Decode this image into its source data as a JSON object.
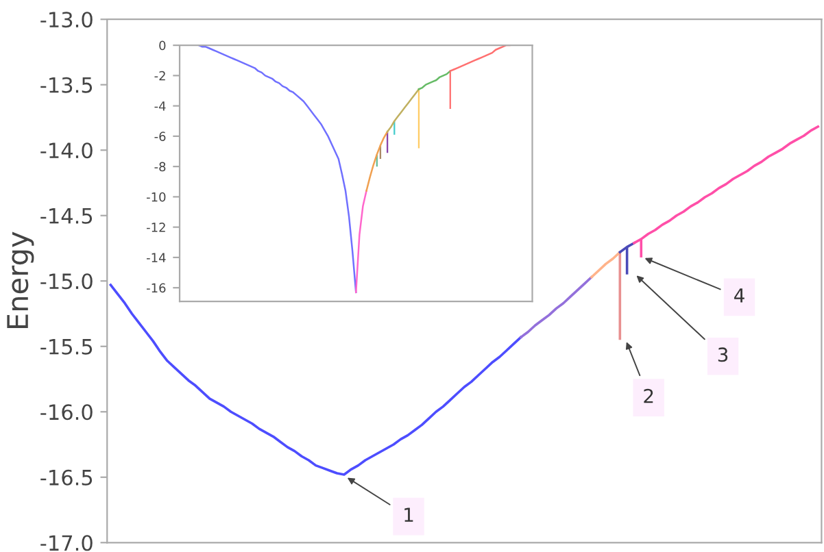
{
  "chart_data": [
    {
      "type": "line",
      "ylabel": "Energy",
      "ylim": [
        -17.0,
        -13.0
      ],
      "tick_labels": "y",
      "yticks": [
        {
          "value": -13.0,
          "label": "-13.0"
        },
        {
          "value": -13.5,
          "label": "-13.5"
        },
        {
          "value": -14.0,
          "label": "-14.0"
        },
        {
          "value": -14.5,
          "label": "-14.5"
        },
        {
          "value": -15.0,
          "label": "-15.0"
        },
        {
          "value": -15.5,
          "label": "-15.5"
        },
        {
          "value": -16.0,
          "label": "-16.0"
        },
        {
          "value": -16.5,
          "label": "-16.5"
        },
        {
          "value": -17.0,
          "label": "-17.0"
        }
      ],
      "categories": [
        null,
        null,
        null,
        null,
        null,
        null,
        null,
        null,
        null,
        null,
        null,
        null,
        null,
        null,
        null,
        null,
        null,
        null,
        null,
        null,
        null,
        null,
        null,
        null,
        null,
        null,
        null,
        null,
        null,
        null,
        null,
        null,
        null,
        null,
        null,
        null,
        null,
        null,
        null,
        null,
        null,
        null,
        null,
        null,
        null,
        null,
        null,
        null,
        null,
        null,
        null,
        null,
        null,
        null,
        null,
        null,
        null,
        null,
        null,
        null,
        null,
        null,
        null,
        null,
        null,
        null,
        null,
        null,
        null,
        null,
        null,
        null,
        null,
        null,
        null,
        null,
        null,
        null,
        null,
        null,
        null,
        null,
        null,
        null,
        null,
        null,
        null,
        null,
        null,
        null,
        null,
        null,
        null,
        null,
        null,
        null,
        null,
        null,
        null,
        null,
        null
      ],
      "series": [
        {
          "color": "#4d4dff",
          "values": [
            -15.03,
            -15.1,
            -15.17,
            -15.25,
            -15.32,
            -15.39,
            -15.46,
            -15.54,
            -15.61,
            -15.66,
            -15.71,
            -15.76,
            -15.8,
            -15.85,
            -15.9,
            -15.93,
            -15.96,
            -16.0,
            -16.03,
            -16.06,
            -16.09,
            -16.13,
            -16.16,
            -16.19,
            -16.23,
            -16.27,
            -16.3,
            -16.34,
            -16.37,
            -16.41,
            -16.43,
            -16.45,
            -16.47,
            -16.48,
            -16.44,
            -16.41,
            -16.37,
            -16.34,
            -16.31,
            -16.28,
            -16.25,
            -16.21,
            -16.18,
            -16.14,
            -16.1,
            -16.05,
            -16.0,
            -15.96,
            -15.91,
            -15.86,
            -15.81,
            -15.77,
            -15.72,
            -15.67,
            -15.62,
            -15.58,
            -15.53,
            -15.48,
            -15.43,
            null,
            null,
            null,
            null,
            null,
            null,
            null,
            null,
            null,
            null,
            null,
            null,
            null,
            null,
            null,
            null,
            null,
            null,
            null,
            null,
            null,
            null,
            null,
            null,
            null,
            null,
            null,
            null,
            null,
            null,
            null,
            null,
            null,
            null,
            null,
            null,
            null,
            null,
            null,
            null,
            null,
            null
          ]
        },
        {
          "color": "#9370db",
          "values": [
            null,
            null,
            null,
            null,
            null,
            null,
            null,
            null,
            null,
            null,
            null,
            null,
            null,
            null,
            null,
            null,
            null,
            null,
            null,
            null,
            null,
            null,
            null,
            null,
            null,
            null,
            null,
            null,
            null,
            null,
            null,
            null,
            null,
            null,
            null,
            null,
            null,
            null,
            null,
            null,
            null,
            null,
            null,
            null,
            null,
            null,
            null,
            null,
            null,
            null,
            null,
            null,
            null,
            null,
            null,
            null,
            null,
            null,
            -15.43,
            -15.39,
            -15.34,
            -15.3,
            -15.26,
            -15.21,
            -15.17,
            -15.12,
            -15.07,
            -15.02,
            -14.97,
            null,
            null,
            null,
            null,
            null,
            null,
            null,
            null,
            null,
            null,
            null,
            null,
            null,
            null,
            null,
            null,
            null,
            null,
            null,
            null,
            null,
            null,
            null,
            null,
            null,
            null,
            null,
            null,
            null,
            null,
            null,
            null
          ]
        },
        {
          "color": "#ffb38a",
          "values": [
            null,
            null,
            null,
            null,
            null,
            null,
            null,
            null,
            null,
            null,
            null,
            null,
            null,
            null,
            null,
            null,
            null,
            null,
            null,
            null,
            null,
            null,
            null,
            null,
            null,
            null,
            null,
            null,
            null,
            null,
            null,
            null,
            null,
            null,
            null,
            null,
            null,
            null,
            null,
            null,
            null,
            null,
            null,
            null,
            null,
            null,
            null,
            null,
            null,
            null,
            null,
            null,
            null,
            null,
            null,
            null,
            null,
            null,
            null,
            null,
            null,
            null,
            null,
            null,
            null,
            null,
            null,
            null,
            -14.97,
            -14.92,
            -14.87,
            -14.83,
            -14.78,
            null,
            null,
            null,
            null,
            null,
            null,
            null,
            null,
            null,
            null,
            null,
            null,
            null,
            null,
            null,
            null,
            null,
            null,
            null,
            null,
            null,
            null,
            null,
            null,
            null,
            null,
            null,
            null
          ]
        },
        {
          "color": "#4a4ab8",
          "values": [
            null,
            null,
            null,
            null,
            null,
            null,
            null,
            null,
            null,
            null,
            null,
            null,
            null,
            null,
            null,
            null,
            null,
            null,
            null,
            null,
            null,
            null,
            null,
            null,
            null,
            null,
            null,
            null,
            null,
            null,
            null,
            null,
            null,
            null,
            null,
            null,
            null,
            null,
            null,
            null,
            null,
            null,
            null,
            null,
            null,
            null,
            null,
            null,
            null,
            null,
            null,
            null,
            null,
            null,
            null,
            null,
            null,
            null,
            null,
            null,
            null,
            null,
            null,
            null,
            null,
            null,
            null,
            null,
            null,
            null,
            null,
            null,
            -14.78,
            -14.74,
            -14.71,
            null,
            null,
            null,
            null,
            null,
            null,
            null,
            null,
            null,
            null,
            null,
            null,
            null,
            null,
            null,
            null,
            null,
            null,
            null,
            null,
            null,
            null,
            null,
            null,
            null,
            null
          ]
        },
        {
          "color": "#ff4fa8",
          "values": [
            null,
            null,
            null,
            null,
            null,
            null,
            null,
            null,
            null,
            null,
            null,
            null,
            null,
            null,
            null,
            null,
            null,
            null,
            null,
            null,
            null,
            null,
            null,
            null,
            null,
            null,
            null,
            null,
            null,
            null,
            null,
            null,
            null,
            null,
            null,
            null,
            null,
            null,
            null,
            null,
            null,
            null,
            null,
            null,
            null,
            null,
            null,
            null,
            null,
            null,
            null,
            null,
            null,
            null,
            null,
            null,
            null,
            null,
            null,
            null,
            null,
            null,
            null,
            null,
            null,
            null,
            null,
            null,
            null,
            null,
            null,
            null,
            null,
            null,
            -14.71,
            -14.68,
            -14.64,
            -14.61,
            -14.57,
            -14.54,
            -14.5,
            -14.47,
            -14.43,
            -14.4,
            -14.36,
            -14.33,
            -14.29,
            -14.26,
            -14.22,
            -14.19,
            -14.16,
            -14.12,
            -14.09,
            -14.05,
            -14.02,
            -13.99,
            -13.95,
            -13.92,
            -13.89,
            -13.85,
            -13.82
          ]
        },
        {
          "type": "bar",
          "values": [
            null,
            null,
            null,
            null,
            null,
            null,
            null,
            null,
            null,
            null,
            null,
            null,
            null,
            null,
            null,
            null,
            null,
            null,
            null,
            null,
            null,
            null,
            null,
            null,
            null,
            null,
            null,
            null,
            null,
            null,
            null,
            null,
            null,
            null,
            null,
            null,
            null,
            null,
            null,
            null,
            null,
            null,
            null,
            null,
            null,
            null,
            null,
            null,
            null,
            null,
            null,
            null,
            null,
            null,
            null,
            null,
            null,
            null,
            null,
            null,
            null,
            null,
            null,
            null,
            null,
            null,
            null,
            null,
            null,
            null,
            null,
            null,
            -0.67,
            -0.21,
            null,
            -0.14,
            null,
            null,
            null,
            null,
            null,
            null,
            null,
            null,
            null,
            null,
            null,
            null,
            null,
            null,
            null,
            null,
            null,
            null,
            null,
            null,
            null,
            null,
            null,
            null,
            null
          ],
          "base": [
            null,
            null,
            null,
            null,
            null,
            null,
            null,
            null,
            null,
            null,
            null,
            null,
            null,
            null,
            null,
            null,
            null,
            null,
            null,
            null,
            null,
            null,
            null,
            null,
            null,
            null,
            null,
            null,
            null,
            null,
            null,
            null,
            null,
            null,
            null,
            null,
            null,
            null,
            null,
            null,
            null,
            null,
            null,
            null,
            null,
            null,
            null,
            null,
            null,
            null,
            null,
            null,
            null,
            null,
            null,
            null,
            null,
            null,
            null,
            null,
            null,
            null,
            null,
            null,
            null,
            null,
            null,
            null,
            null,
            null,
            null,
            null,
            -14.78,
            -14.74,
            null,
            -14.68,
            null,
            null,
            null,
            null,
            null,
            null,
            null,
            null,
            null,
            null,
            null,
            null,
            null,
            null,
            null,
            null,
            null,
            null,
            null,
            null,
            null,
            null,
            null,
            null,
            null
          ],
          "colors": [
            null,
            null,
            null,
            null,
            null,
            null,
            null,
            null,
            null,
            null,
            null,
            null,
            null,
            null,
            null,
            null,
            null,
            null,
            null,
            null,
            null,
            null,
            null,
            null,
            null,
            null,
            null,
            null,
            null,
            null,
            null,
            null,
            null,
            null,
            null,
            null,
            null,
            null,
            null,
            null,
            null,
            null,
            null,
            null,
            null,
            null,
            null,
            null,
            null,
            null,
            null,
            null,
            null,
            null,
            null,
            null,
            null,
            null,
            null,
            null,
            null,
            null,
            null,
            null,
            null,
            null,
            null,
            null,
            null,
            null,
            null,
            null,
            "#e89090",
            "#4a4ab8",
            null,
            "#ff4fa8",
            null,
            null,
            null,
            null,
            null,
            null,
            null,
            null,
            null,
            null,
            null,
            null,
            null,
            null,
            null,
            null,
            null,
            null,
            null,
            null,
            null,
            null,
            null,
            null,
            null
          ]
        }
      ],
      "annotations": [
        "1",
        "2",
        "3",
        "4"
      ]
    },
    {
      "type": "line",
      "ylim": [
        -16.9,
        0
      ],
      "yticks": [
        0,
        -2,
        -4,
        -6,
        -8,
        -10,
        -12,
        -14,
        -16
      ],
      "tick_labels": "y",
      "categories": [
        null,
        null,
        null,
        null,
        null,
        null,
        null,
        null,
        null,
        null,
        null,
        null,
        null,
        null,
        null,
        null,
        null,
        null,
        null,
        null,
        null,
        null,
        null,
        null,
        null,
        null,
        null,
        null,
        null,
        null,
        null,
        null,
        null,
        null,
        null,
        null,
        null,
        null,
        null,
        null,
        null,
        null,
        null,
        null,
        null,
        null,
        null,
        null,
        null,
        null,
        null,
        null,
        null,
        null,
        null,
        null,
        null,
        null,
        null,
        null,
        null,
        null,
        null,
        null,
        null,
        null,
        null,
        null,
        null,
        null,
        null,
        null,
        null,
        null,
        null,
        null,
        null,
        null,
        null,
        null,
        null,
        null,
        null,
        null,
        null,
        null,
        null,
        null,
        null,
        null,
        null,
        null,
        null,
        null,
        null,
        null,
        null,
        null,
        null,
        null,
        null
      ],
      "series": [
        {
          "color": "#7070ff",
          "values": [
            null,
            null,
            null,
            null,
            null,
            0.0,
            -0.1,
            -0.1,
            -0.2,
            -0.3,
            -0.4,
            -0.5,
            -0.6,
            -0.7,
            -0.8,
            -0.9,
            -1.0,
            -1.1,
            -1.2,
            -1.3,
            -1.4,
            -1.5,
            -1.7,
            -1.8,
            -2.0,
            -2.1,
            -2.2,
            -2.4,
            -2.5,
            -2.7,
            -2.8,
            -3.0,
            -3.1,
            -3.3,
            -3.5,
            -3.7,
            -4.0,
            -4.3,
            -4.6,
            -4.9,
            -5.2,
            -5.6,
            -6.0,
            -6.5,
            -7.0,
            -7.5,
            -8.5,
            -9.6,
            -11.3,
            -13.6,
            -16.3,
            null,
            null,
            null,
            null,
            null,
            null,
            null,
            null,
            null,
            null,
            null,
            null,
            null,
            null,
            null,
            null,
            null,
            null,
            null,
            null,
            null,
            null,
            null,
            null,
            null,
            null,
            null,
            null,
            null,
            null,
            null,
            null,
            null,
            null,
            null,
            null,
            null,
            null,
            null,
            null,
            null,
            null,
            null,
            null,
            null,
            null,
            null,
            null,
            null,
            null
          ]
        },
        {
          "color": "#ff66cc",
          "values": [
            null,
            null,
            null,
            null,
            null,
            null,
            null,
            null,
            null,
            null,
            null,
            null,
            null,
            null,
            null,
            null,
            null,
            null,
            null,
            null,
            null,
            null,
            null,
            null,
            null,
            null,
            null,
            null,
            null,
            null,
            null,
            null,
            null,
            null,
            null,
            null,
            null,
            null,
            null,
            null,
            null,
            null,
            null,
            null,
            null,
            null,
            null,
            null,
            null,
            null,
            -16.3,
            -12.5,
            -10.6,
            -9.6,
            null,
            null,
            null,
            null,
            null,
            null,
            null,
            null,
            null,
            null,
            null,
            null,
            null,
            null,
            null,
            null,
            null,
            null,
            null,
            null,
            null,
            null,
            null,
            null,
            null,
            null,
            null,
            null,
            null,
            null,
            null,
            null,
            null,
            null,
            null,
            null,
            null,
            null,
            null,
            null,
            null,
            null,
            null,
            null,
            null,
            null,
            null
          ]
        },
        {
          "color": "#f0a050",
          "values": [
            null,
            null,
            null,
            null,
            null,
            null,
            null,
            null,
            null,
            null,
            null,
            null,
            null,
            null,
            null,
            null,
            null,
            null,
            null,
            null,
            null,
            null,
            null,
            null,
            null,
            null,
            null,
            null,
            null,
            null,
            null,
            null,
            null,
            null,
            null,
            null,
            null,
            null,
            null,
            null,
            null,
            null,
            null,
            null,
            null,
            null,
            null,
            null,
            null,
            null,
            null,
            null,
            null,
            -9.6,
            -8.7,
            -7.9,
            -7.2,
            -6.6,
            -6.1,
            -5.7,
            null,
            null,
            null,
            null,
            null,
            null,
            null,
            null,
            null,
            null,
            null,
            null,
            null,
            null,
            null,
            null,
            null,
            null,
            null,
            null,
            null,
            null,
            null,
            null,
            null,
            null,
            null,
            null,
            null,
            null,
            null,
            null,
            null,
            null,
            null,
            null,
            null,
            null,
            null,
            null,
            null
          ]
        },
        {
          "color": "#c0b060",
          "values": [
            null,
            null,
            null,
            null,
            null,
            null,
            null,
            null,
            null,
            null,
            null,
            null,
            null,
            null,
            null,
            null,
            null,
            null,
            null,
            null,
            null,
            null,
            null,
            null,
            null,
            null,
            null,
            null,
            null,
            null,
            null,
            null,
            null,
            null,
            null,
            null,
            null,
            null,
            null,
            null,
            null,
            null,
            null,
            null,
            null,
            null,
            null,
            null,
            null,
            null,
            null,
            null,
            null,
            null,
            null,
            null,
            null,
            null,
            null,
            -5.7,
            -5.4,
            -5.0,
            -4.7,
            -4.4,
            -4.1,
            -3.8,
            -3.5,
            -3.2,
            -2.9,
            null,
            null,
            null,
            null,
            null,
            null,
            null,
            null,
            null,
            null,
            null,
            null,
            null,
            null,
            null,
            null,
            null,
            null,
            null,
            null,
            null,
            null,
            null,
            null,
            null,
            null,
            null,
            null,
            null,
            null,
            null,
            null
          ]
        },
        {
          "color": "#66bb66",
          "values": [
            null,
            null,
            null,
            null,
            null,
            null,
            null,
            null,
            null,
            null,
            null,
            null,
            null,
            null,
            null,
            null,
            null,
            null,
            null,
            null,
            null,
            null,
            null,
            null,
            null,
            null,
            null,
            null,
            null,
            null,
            null,
            null,
            null,
            null,
            null,
            null,
            null,
            null,
            null,
            null,
            null,
            null,
            null,
            null,
            null,
            null,
            null,
            null,
            null,
            null,
            null,
            null,
            null,
            null,
            null,
            null,
            null,
            null,
            null,
            null,
            null,
            null,
            null,
            null,
            null,
            null,
            null,
            null,
            -2.9,
            -2.8,
            -2.6,
            -2.5,
            -2.4,
            -2.3,
            -2.1,
            -2.0,
            -1.9,
            -1.7,
            null,
            null,
            null,
            null,
            null,
            null,
            null,
            null,
            null,
            null,
            null,
            null,
            null,
            null,
            null,
            null,
            null,
            null,
            null,
            null,
            null,
            null,
            null
          ]
        },
        {
          "color": "#ff7070",
          "values": [
            null,
            null,
            null,
            null,
            null,
            null,
            null,
            null,
            null,
            null,
            null,
            null,
            null,
            null,
            null,
            null,
            null,
            null,
            null,
            null,
            null,
            null,
            null,
            null,
            null,
            null,
            null,
            null,
            null,
            null,
            null,
            null,
            null,
            null,
            null,
            null,
            null,
            null,
            null,
            null,
            null,
            null,
            null,
            null,
            null,
            null,
            null,
            null,
            null,
            null,
            null,
            null,
            null,
            null,
            null,
            null,
            null,
            null,
            null,
            null,
            null,
            null,
            null,
            null,
            null,
            null,
            null,
            null,
            null,
            null,
            null,
            null,
            null,
            null,
            null,
            null,
            null,
            -1.7,
            -1.6,
            -1.5,
            -1.4,
            -1.3,
            -1.2,
            -1.1,
            -1.0,
            -0.9,
            -0.8,
            -0.7,
            -0.6,
            -0.5,
            -0.3,
            -0.2,
            -0.1,
            0.0,
            0.0,
            null,
            null,
            null,
            null,
            null,
            null
          ]
        },
        {
          "type": "bar",
          "values": [
            null,
            null,
            null,
            null,
            null,
            null,
            null,
            null,
            null,
            null,
            null,
            null,
            null,
            null,
            null,
            null,
            null,
            null,
            null,
            null,
            null,
            null,
            null,
            null,
            null,
            null,
            null,
            null,
            null,
            null,
            null,
            null,
            null,
            null,
            null,
            null,
            null,
            null,
            null,
            null,
            null,
            null,
            null,
            null,
            null,
            null,
            null,
            null,
            null,
            null,
            null,
            null,
            null,
            null,
            null,
            null,
            -0.8,
            -0.9,
            null,
            -1.4,
            null,
            -0.9,
            null,
            null,
            null,
            null,
            null,
            null,
            -3.9,
            null,
            null,
            null,
            null,
            null,
            null,
            null,
            null,
            -2.5,
            null,
            null,
            null,
            null,
            null,
            null,
            null,
            null,
            null,
            null,
            null,
            null,
            null,
            null,
            null,
            null,
            null,
            null,
            null,
            null,
            null,
            null,
            null
          ],
          "base": [
            null,
            null,
            null,
            null,
            null,
            null,
            null,
            null,
            null,
            null,
            null,
            null,
            null,
            null,
            null,
            null,
            null,
            null,
            null,
            null,
            null,
            null,
            null,
            null,
            null,
            null,
            null,
            null,
            null,
            null,
            null,
            null,
            null,
            null,
            null,
            null,
            null,
            null,
            null,
            null,
            null,
            null,
            null,
            null,
            null,
            null,
            null,
            null,
            null,
            null,
            null,
            null,
            null,
            null,
            null,
            null,
            -7.2,
            -6.6,
            null,
            -5.7,
            null,
            -5.0,
            null,
            null,
            null,
            null,
            null,
            null,
            -2.9,
            null,
            null,
            null,
            null,
            null,
            null,
            null,
            null,
            -1.7,
            null,
            null,
            null,
            null,
            null,
            null,
            null,
            null,
            null,
            null,
            null,
            null,
            null,
            null,
            null,
            null,
            null,
            null,
            null,
            null,
            null,
            null,
            null
          ],
          "colors": [
            null,
            null,
            null,
            null,
            null,
            null,
            null,
            null,
            null,
            null,
            null,
            null,
            null,
            null,
            null,
            null,
            null,
            null,
            null,
            null,
            null,
            null,
            null,
            null,
            null,
            null,
            null,
            null,
            null,
            null,
            null,
            null,
            null,
            null,
            null,
            null,
            null,
            null,
            null,
            null,
            null,
            null,
            null,
            null,
            null,
            null,
            null,
            null,
            null,
            null,
            null,
            null,
            null,
            null,
            null,
            null,
            "#66bb99",
            "#aa8866",
            null,
            "#8844aa",
            null,
            "#44cccc",
            null,
            null,
            null,
            null,
            null,
            null,
            "#ffcc66",
            null,
            null,
            null,
            null,
            null,
            null,
            null,
            null,
            "#ff7070",
            null,
            null,
            null,
            null,
            null,
            null,
            null,
            null,
            null,
            null,
            null,
            null,
            null,
            null,
            null,
            null,
            null,
            null,
            null,
            null,
            null,
            null,
            null
          ]
        }
      ]
    }
  ]
}
